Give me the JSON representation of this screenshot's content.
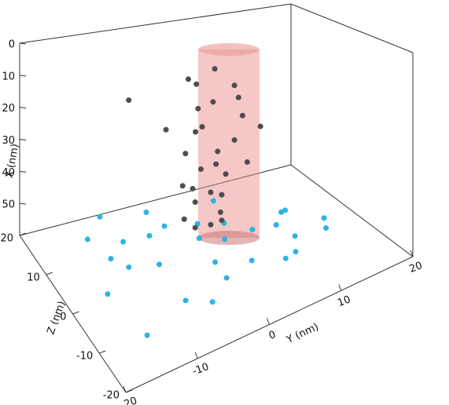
{
  "chart_data": {
    "type": "scatter3d",
    "xlabel": "X (nm)",
    "ylabel": "Y (nm)",
    "zlabel": "Z (nm)",
    "xlim": [
      0,
      60
    ],
    "ylim": [
      -20,
      20
    ],
    "zlim": [
      -20,
      20
    ],
    "xticks": [
      0,
      10,
      20,
      30,
      40,
      50
    ],
    "yticks": [
      -20,
      -10,
      0,
      10,
      20
    ],
    "zticks": [
      -20,
      -10,
      0,
      10,
      20
    ],
    "series": [
      {
        "color": "#2ab4e8",
        "x": [
          58,
          59,
          58,
          60,
          59,
          58,
          59,
          60,
          58,
          59,
          58,
          60,
          59,
          58,
          59,
          60,
          58,
          59,
          58,
          60,
          59,
          58,
          59,
          60,
          58,
          59,
          58,
          60,
          59,
          58
        ],
        "y": [
          -15,
          -10,
          -5,
          0,
          5,
          10,
          15,
          -12,
          -7,
          -2,
          3,
          8,
          13,
          -9,
          -4,
          1,
          6,
          11,
          -14,
          -6,
          2,
          9,
          16,
          -11,
          -3,
          4,
          12,
          -8,
          0,
          7
        ],
        "z": [
          0,
          5,
          10,
          -5,
          8,
          2,
          -3,
          15,
          -8,
          12,
          3,
          -6,
          6,
          18,
          -10,
          7,
          14,
          -2,
          -12,
          4,
          10,
          -7,
          0,
          9,
          16,
          -4,
          5,
          12,
          -1,
          3
        ]
      },
      {
        "color": "#4d4d4d",
        "x": [
          5,
          8,
          10,
          12,
          14,
          15,
          17,
          18,
          20,
          22,
          24,
          25,
          27,
          28,
          30,
          32,
          33,
          35,
          37,
          38,
          40,
          42,
          43,
          45,
          47,
          48,
          50,
          52,
          53,
          55
        ],
        "y": [
          2,
          -1,
          4,
          1,
          -8,
          5,
          0,
          3,
          -2,
          6,
          1,
          -3,
          4,
          9,
          2,
          -1,
          5,
          0,
          3,
          -2,
          4,
          1,
          -1,
          3,
          0,
          2,
          -2,
          1,
          3,
          0
        ],
        "z": [
          4,
          6,
          2,
          8,
          10,
          3,
          5,
          7,
          1,
          4,
          6,
          9,
          2,
          5,
          3,
          7,
          0,
          4,
          6,
          2,
          5,
          3,
          8,
          4,
          6,
          2,
          5,
          3,
          4,
          6
        ]
      }
    ]
  }
}
